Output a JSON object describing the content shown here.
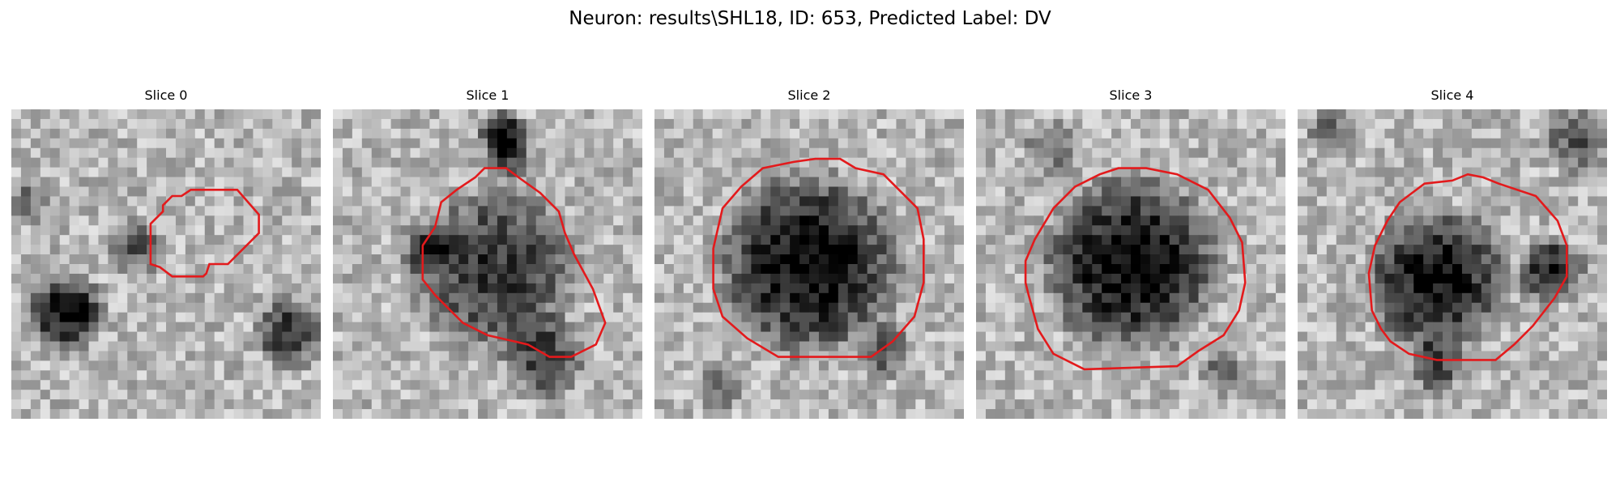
{
  "figure": {
    "title": "Neuron: results\\SHL18, ID: 653, Predicted Label: DV",
    "contour_color": "#e31a1c",
    "colormap": "gray"
  },
  "panels": [
    {
      "title": "Slice 0",
      "seed": 11,
      "dark_blobs": [
        [
          0.18,
          0.66,
          0.14,
          0.9
        ],
        [
          0.4,
          0.45,
          0.1,
          0.5
        ],
        [
          0.9,
          0.72,
          0.13,
          0.7
        ],
        [
          0.05,
          0.3,
          0.08,
          0.4
        ]
      ],
      "contour": [
        [
          0.58,
          0.26
        ],
        [
          0.73,
          0.26
        ],
        [
          0.8,
          0.34
        ],
        [
          0.8,
          0.4
        ],
        [
          0.7,
          0.5
        ],
        [
          0.64,
          0.5
        ],
        [
          0.63,
          0.53
        ],
        [
          0.62,
          0.54
        ],
        [
          0.52,
          0.54
        ],
        [
          0.48,
          0.51
        ],
        [
          0.45,
          0.5
        ],
        [
          0.45,
          0.37
        ],
        [
          0.49,
          0.33
        ],
        [
          0.49,
          0.31
        ],
        [
          0.52,
          0.28
        ],
        [
          0.55,
          0.28
        ]
      ]
    },
    {
      "title": "Slice 1",
      "seed": 23,
      "dark_blobs": [
        [
          0.55,
          0.08,
          0.09,
          0.9
        ],
        [
          0.58,
          0.17,
          0.08,
          0.6
        ],
        [
          0.52,
          0.52,
          0.3,
          0.7
        ],
        [
          0.68,
          0.8,
          0.15,
          0.6
        ],
        [
          0.3,
          0.45,
          0.1,
          0.5
        ]
      ],
      "contour": [
        [
          0.49,
          0.19
        ],
        [
          0.56,
          0.19
        ],
        [
          0.6,
          0.22
        ],
        [
          0.67,
          0.27
        ],
        [
          0.73,
          0.33
        ],
        [
          0.75,
          0.4
        ],
        [
          0.78,
          0.47
        ],
        [
          0.84,
          0.58
        ],
        [
          0.88,
          0.69
        ],
        [
          0.85,
          0.76
        ],
        [
          0.77,
          0.8
        ],
        [
          0.7,
          0.8
        ],
        [
          0.63,
          0.76
        ],
        [
          0.5,
          0.73
        ],
        [
          0.42,
          0.69
        ],
        [
          0.33,
          0.6
        ],
        [
          0.29,
          0.55
        ],
        [
          0.29,
          0.44
        ],
        [
          0.33,
          0.38
        ],
        [
          0.35,
          0.3
        ],
        [
          0.4,
          0.26
        ],
        [
          0.46,
          0.22
        ]
      ]
    },
    {
      "title": "Slice 2",
      "seed": 37,
      "dark_blobs": [
        [
          0.5,
          0.5,
          0.33,
          0.95
        ],
        [
          0.75,
          0.78,
          0.1,
          0.5
        ],
        [
          0.2,
          0.9,
          0.09,
          0.4
        ]
      ],
      "contour": [
        [
          0.45,
          0.17
        ],
        [
          0.52,
          0.16
        ],
        [
          0.6,
          0.16
        ],
        [
          0.65,
          0.19
        ],
        [
          0.74,
          0.21
        ],
        [
          0.8,
          0.27
        ],
        [
          0.85,
          0.32
        ],
        [
          0.87,
          0.42
        ],
        [
          0.87,
          0.56
        ],
        [
          0.84,
          0.67
        ],
        [
          0.77,
          0.75
        ],
        [
          0.7,
          0.8
        ],
        [
          0.4,
          0.8
        ],
        [
          0.3,
          0.74
        ],
        [
          0.22,
          0.67
        ],
        [
          0.19,
          0.58
        ],
        [
          0.19,
          0.45
        ],
        [
          0.22,
          0.32
        ],
        [
          0.28,
          0.25
        ],
        [
          0.35,
          0.19
        ]
      ]
    },
    {
      "title": "Slice 3",
      "seed": 51,
      "dark_blobs": [
        [
          0.5,
          0.5,
          0.32,
          0.95
        ],
        [
          0.25,
          0.12,
          0.1,
          0.4
        ],
        [
          0.8,
          0.85,
          0.09,
          0.4
        ]
      ],
      "contour": [
        [
          0.46,
          0.19
        ],
        [
          0.55,
          0.19
        ],
        [
          0.65,
          0.21
        ],
        [
          0.75,
          0.26
        ],
        [
          0.82,
          0.35
        ],
        [
          0.86,
          0.43
        ],
        [
          0.87,
          0.56
        ],
        [
          0.85,
          0.65
        ],
        [
          0.8,
          0.73
        ],
        [
          0.72,
          0.78
        ],
        [
          0.65,
          0.83
        ],
        [
          0.35,
          0.84
        ],
        [
          0.25,
          0.79
        ],
        [
          0.2,
          0.71
        ],
        [
          0.17,
          0.6
        ],
        [
          0.16,
          0.56
        ],
        [
          0.16,
          0.49
        ],
        [
          0.19,
          0.42
        ],
        [
          0.25,
          0.32
        ],
        [
          0.32,
          0.25
        ],
        [
          0.4,
          0.21
        ]
      ]
    },
    {
      "title": "Slice 4",
      "seed": 67,
      "dark_blobs": [
        [
          0.45,
          0.55,
          0.26,
          0.9
        ],
        [
          0.82,
          0.52,
          0.12,
          0.8
        ],
        [
          0.9,
          0.1,
          0.12,
          0.5
        ],
        [
          0.12,
          0.08,
          0.1,
          0.4
        ],
        [
          0.45,
          0.83,
          0.1,
          0.6
        ]
      ],
      "contour": [
        [
          0.41,
          0.24
        ],
        [
          0.5,
          0.23
        ],
        [
          0.55,
          0.21
        ],
        [
          0.6,
          0.22
        ],
        [
          0.65,
          0.24
        ],
        [
          0.77,
          0.28
        ],
        [
          0.84,
          0.36
        ],
        [
          0.87,
          0.44
        ],
        [
          0.87,
          0.54
        ],
        [
          0.83,
          0.61
        ],
        [
          0.76,
          0.7
        ],
        [
          0.7,
          0.76
        ],
        [
          0.64,
          0.81
        ],
        [
          0.45,
          0.81
        ],
        [
          0.36,
          0.79
        ],
        [
          0.3,
          0.75
        ],
        [
          0.27,
          0.71
        ],
        [
          0.24,
          0.65
        ],
        [
          0.23,
          0.53
        ],
        [
          0.25,
          0.44
        ],
        [
          0.29,
          0.36
        ],
        [
          0.33,
          0.3
        ]
      ]
    }
  ]
}
